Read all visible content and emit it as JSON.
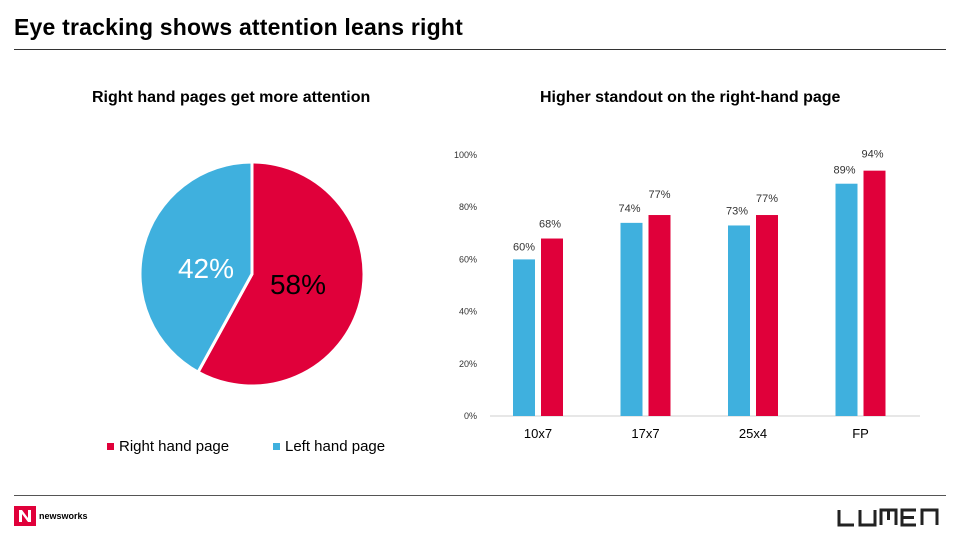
{
  "title": "Eye tracking shows attention leans right",
  "colors": {
    "right": "#e0003a",
    "left": "#3fb0de"
  },
  "pie": {
    "subtitle": "Right hand pages get more attention",
    "chart_data": {
      "type": "pie",
      "slices": [
        {
          "name": "Right hand page",
          "value": 58,
          "label": "58%"
        },
        {
          "name": "Left hand page",
          "value": 42,
          "label": "42%"
        }
      ],
      "legend": "bottom"
    }
  },
  "bar": {
    "subtitle": "Higher standout on the right-hand page",
    "chart_data": {
      "type": "bar",
      "categories": [
        "10x7",
        "17x7",
        "25x4",
        "FP"
      ],
      "series": [
        {
          "name": "Left hand page",
          "values": [
            60,
            74,
            73,
            89
          ],
          "labels": [
            "60%",
            "74%",
            "73%",
            "89%"
          ]
        },
        {
          "name": "Right hand page",
          "values": [
            68,
            77,
            77,
            94
          ],
          "labels": [
            "68%",
            "77%",
            "77%",
            "94%"
          ]
        }
      ],
      "ylim": [
        0,
        100
      ],
      "yticks": [
        "0%",
        "20%",
        "40%",
        "60%",
        "80%",
        "100%"
      ],
      "grid": false
    }
  },
  "legend": {
    "right_label": "Right hand page",
    "left_label": "Left hand page"
  },
  "logos": {
    "newsworks": "newsworks",
    "lumen": "LUMEN"
  }
}
